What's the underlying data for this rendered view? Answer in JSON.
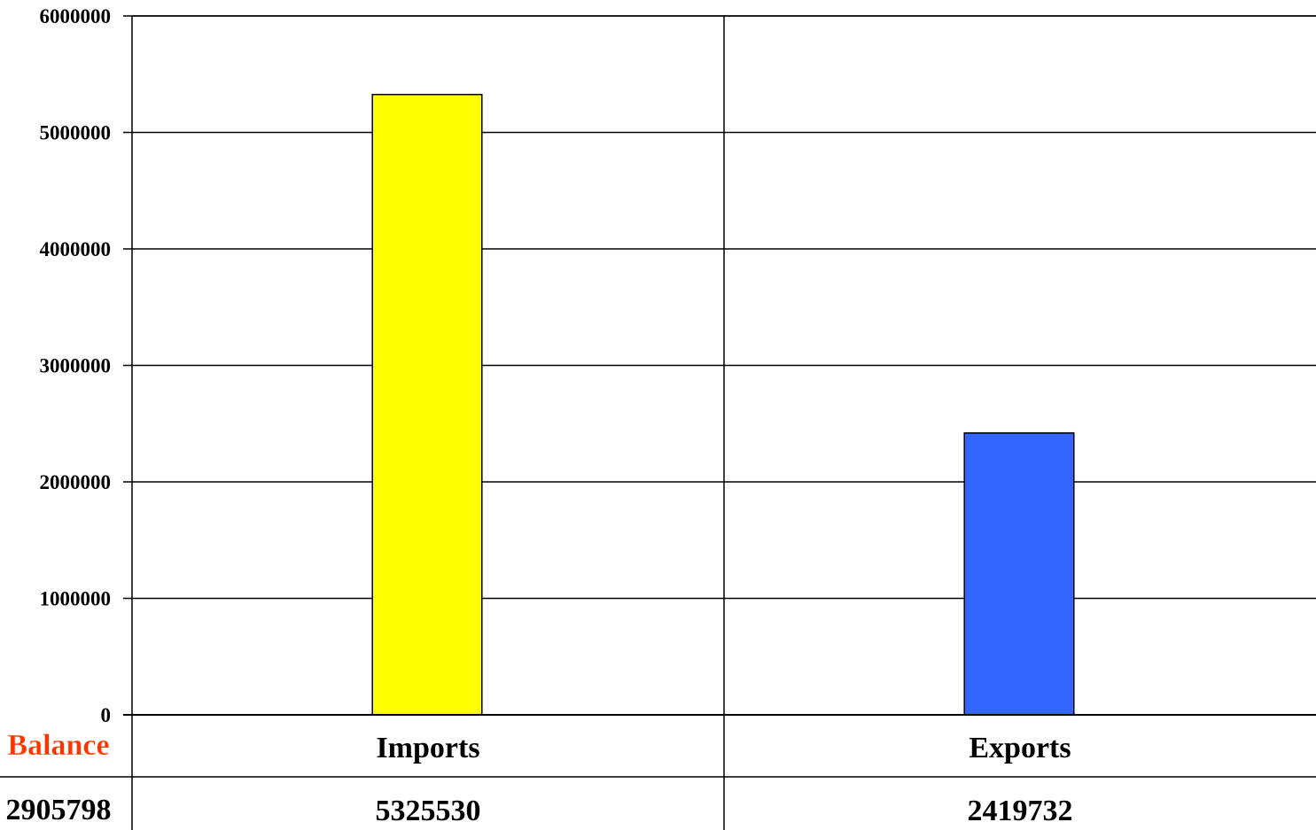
{
  "chart_data": {
    "type": "bar",
    "categories": [
      "Imports",
      "Exports"
    ],
    "values": [
      5325530,
      2419732
    ],
    "bar_colors": [
      "#ffff00",
      "#3366ff"
    ],
    "ylim": [
      0,
      6000000
    ],
    "yticks": [
      "0",
      "1000000",
      "2000000",
      "3000000",
      "4000000",
      "5000000",
      "6000000"
    ],
    "yticks_values": [
      0,
      1000000,
      2000000,
      3000000,
      4000000,
      5000000,
      6000000
    ],
    "grid": true,
    "table": {
      "row_header_label": "Balance",
      "row_header_value": "2905798",
      "row_header_color": "#ff3300",
      "values": [
        "5325530",
        "2419732"
      ]
    }
  }
}
